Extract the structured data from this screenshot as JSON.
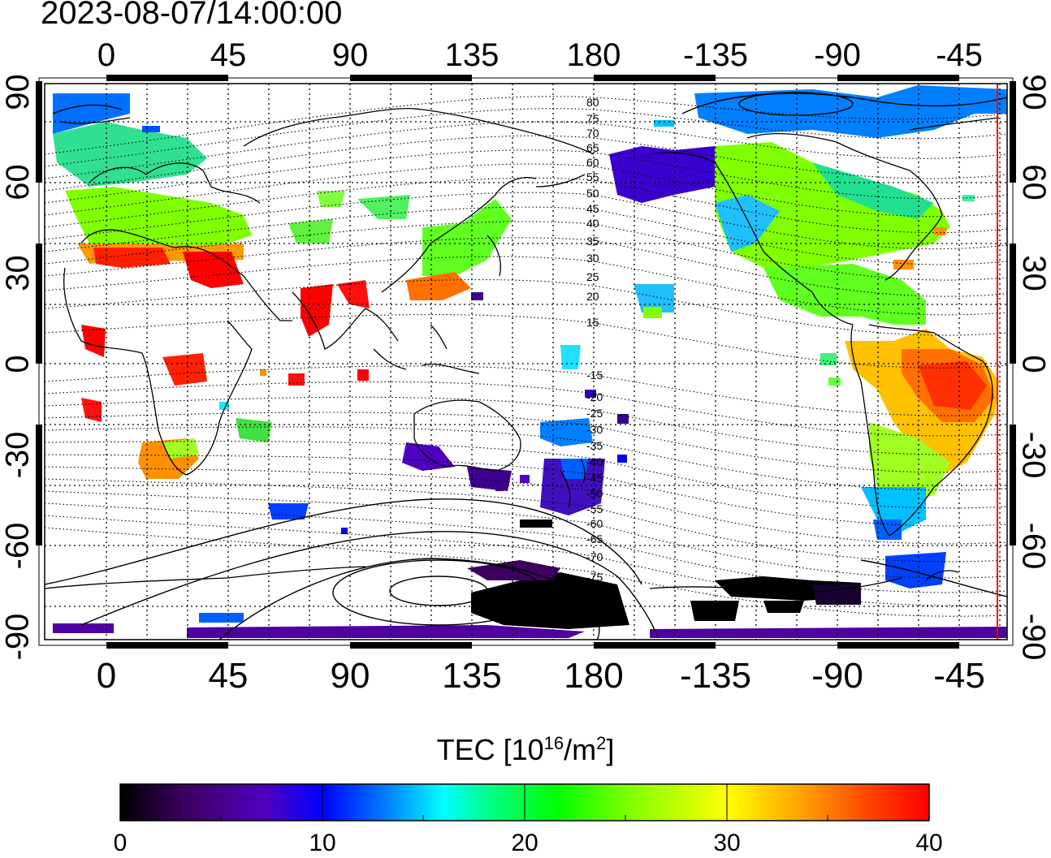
{
  "title": "2023-08-07/14:00:00",
  "map": {
    "lon_ticks": [
      "0",
      "45",
      "90",
      "135",
      "180",
      "-135",
      "-90",
      "-45"
    ],
    "lat_ticks": [
      "90",
      "60",
      "30",
      "0",
      "-30",
      "-60",
      "-90"
    ],
    "mlat_labels": [
      "80",
      "75",
      "70",
      "65",
      "60",
      "55",
      "50",
      "45",
      "40",
      "35",
      "30",
      "25",
      "20",
      "15",
      "-15",
      "-20",
      "-25",
      "-30",
      "-35",
      "-40",
      "-45",
      "-50",
      "-55",
      "-60",
      "-65",
      "-70",
      "-75"
    ],
    "colors": {
      "frame": "#000000",
      "terminator": "#ff0000"
    }
  },
  "colorbar": {
    "label_main": "TEC  [10",
    "label_exp1": "16",
    "label_mid": "/m",
    "label_exp2": "2",
    "label_end": "]",
    "ticks": [
      "0",
      "10",
      "20",
      "30",
      "40"
    ],
    "range": [
      0,
      40
    ],
    "colormap": [
      "#000000",
      "#3d0060",
      "#5000c0",
      "#0000ff",
      "#0080ff",
      "#00ffff",
      "#00ff80",
      "#00ff00",
      "#80ff00",
      "#ffff00",
      "#ff9900",
      "#ff4000",
      "#ff0000"
    ]
  }
}
